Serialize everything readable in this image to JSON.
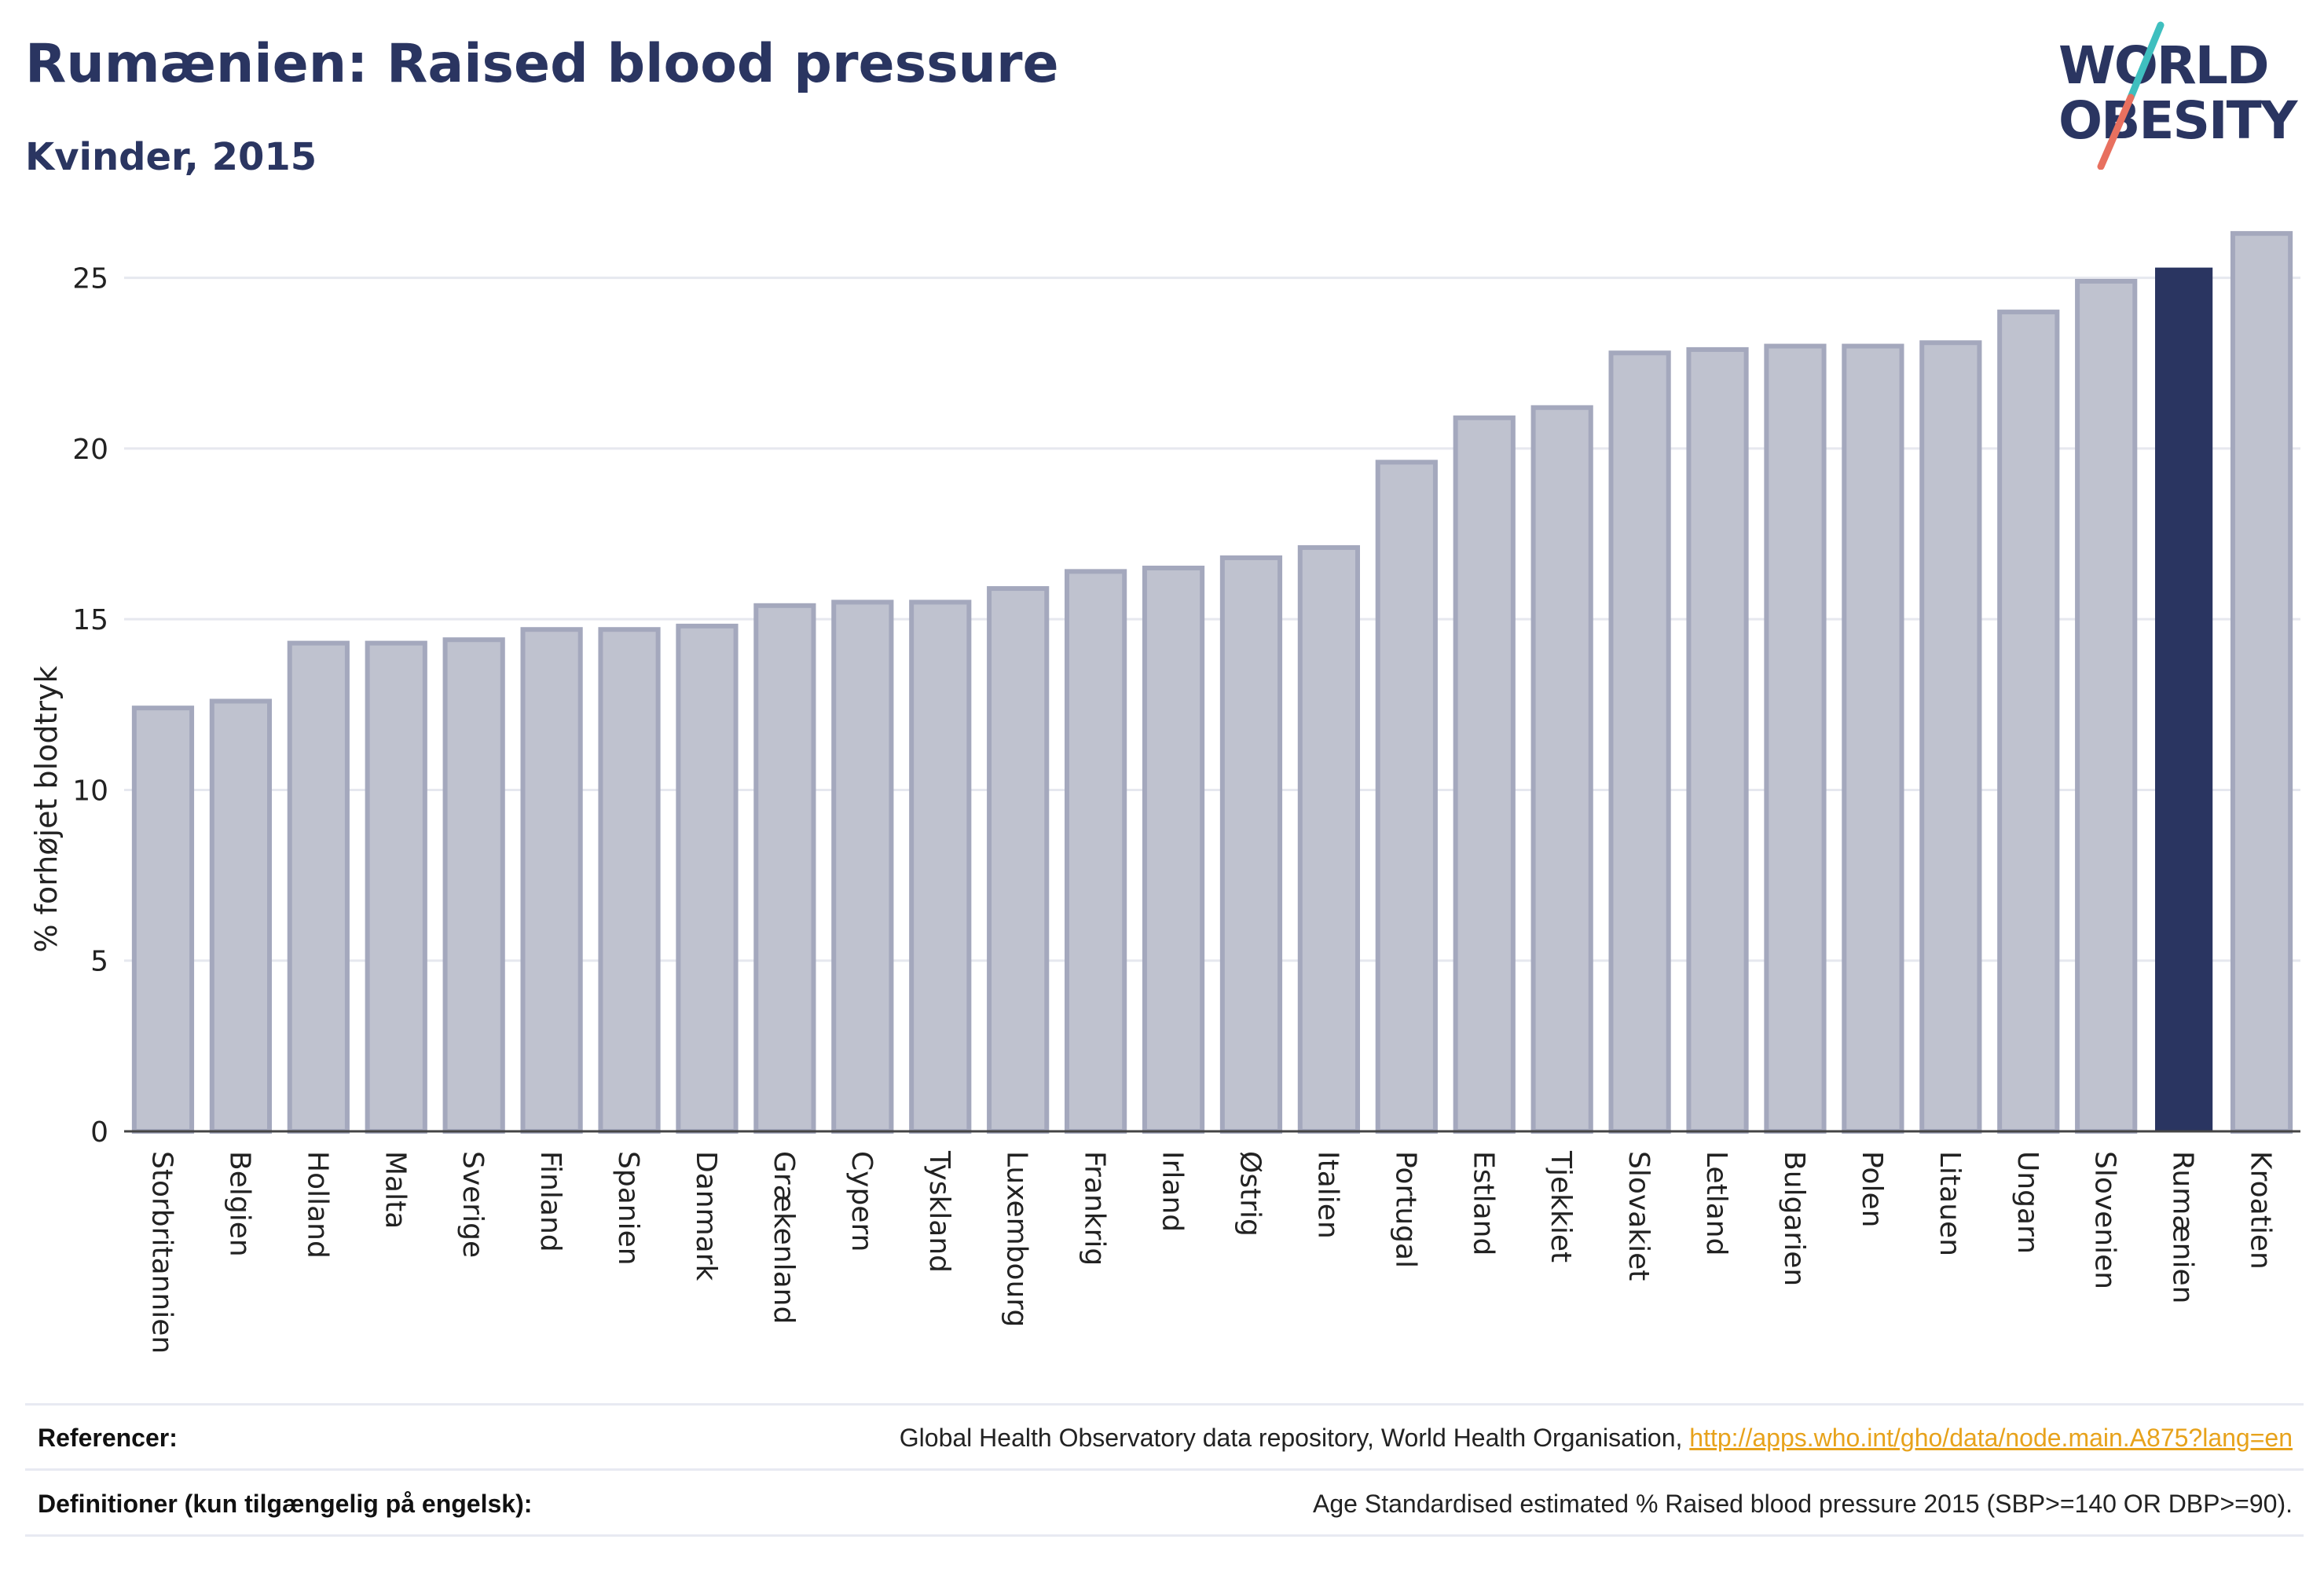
{
  "header": {
    "title": "Rumænien: Raised blood pressure",
    "subtitle": "Kvinder, 2015"
  },
  "logo": {
    "line1": "WORLD",
    "line2": "OBESITY",
    "accent_colors": [
      "#3fbfbf",
      "#e8705f"
    ]
  },
  "colors": {
    "bar": "#bfc2cf",
    "bar_border": "#a4a8bd",
    "highlight": "#2a3561",
    "grid": "#e6e8ef",
    "axis": "#444444"
  },
  "chart_data": {
    "type": "bar",
    "title": "Rumænien: Raised blood pressure",
    "subtitle": "Kvinder, 2015",
    "xlabel": "",
    "ylabel": "% forhøjet blodtryk",
    "ylim": [
      0,
      27.5
    ],
    "yticks": [
      0,
      5,
      10,
      15,
      20,
      25
    ],
    "grid": true,
    "highlight": "Rumænien",
    "categories": [
      "Storbritannien",
      "Belgien",
      "Holland",
      "Malta",
      "Sverige",
      "Finland",
      "Spanien",
      "Danmark",
      "Grækenland",
      "Cypern",
      "Tyskland",
      "Luxembourg",
      "Frankrig",
      "Irland",
      "Østrig",
      "Italien",
      "Portugal",
      "Estland",
      "Tjekkiet",
      "Slovakiet",
      "Letland",
      "Bulgarien",
      "Polen",
      "Litauen",
      "Ungarn",
      "Slovenien",
      "Rumænien",
      "Kroatien"
    ],
    "values": [
      12.4,
      12.6,
      14.3,
      14.3,
      14.4,
      14.7,
      14.7,
      14.8,
      15.4,
      15.5,
      15.5,
      15.9,
      16.4,
      16.5,
      16.8,
      17.1,
      19.6,
      20.9,
      21.2,
      22.8,
      22.9,
      23.0,
      23.0,
      23.1,
      24.0,
      24.9,
      25.3,
      26.3
    ]
  },
  "footer": {
    "references_label": "Referencer:",
    "references_text": "Global Health Observatory data repository, World Health Organisation, ",
    "references_link": "http://apps.who.int/gho/data/node.main.A875?lang=en",
    "definitions_label": "Definitioner (kun tilgængelig på engelsk):",
    "definitions_text": "Age Standardised estimated % Raised blood pressure 2015 (SBP>=140 OR DBP>=90)."
  }
}
